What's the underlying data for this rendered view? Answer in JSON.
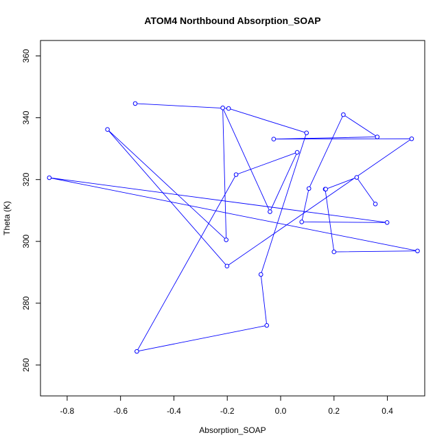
{
  "chart_data": {
    "type": "line",
    "title": "ATOM4 Northbound Absorption_SOAP",
    "xlabel": "Absorption_SOAP",
    "ylabel": "Theta (K)",
    "xlim": [
      -0.9,
      0.54
    ],
    "ylim": [
      250,
      365
    ],
    "xticks": [
      -0.8,
      -0.6,
      -0.4,
      -0.2,
      0.0,
      0.2,
      0.4
    ],
    "xtick_labels": [
      "-0.8",
      "-0.6",
      "-0.4",
      "-0.2",
      "0.0",
      "0.2",
      "0.4"
    ],
    "yticks": [
      260,
      280,
      300,
      320,
      340,
      360
    ],
    "ytick_labels": [
      "260",
      "280",
      "300",
      "320",
      "340",
      "360"
    ],
    "grid": false,
    "series": [
      {
        "color": "#0000ff",
        "marker": "open-circle",
        "x": [
          -0.545,
          -0.195,
          0.097,
          -0.074,
          -0.052,
          -0.539,
          -0.167,
          0.062,
          -0.04,
          -0.217,
          -0.204,
          -0.649,
          -0.201,
          0.491,
          -0.026,
          0.362,
          0.235,
          0.106,
          0.079,
          0.399,
          -0.867,
          0.513,
          0.2,
          0.167,
          0.169,
          0.285,
          0.355
        ],
        "y": [
          344.6,
          343.0,
          335.1,
          289.3,
          272.8,
          264.4,
          321.6,
          328.8,
          309.6,
          343.2,
          300.5,
          336.2,
          292.0,
          333.2,
          333.1,
          333.8,
          341.0,
          317.1,
          306.3,
          306.1,
          320.6,
          296.9,
          296.6,
          316.9,
          316.9,
          320.7,
          312.1
        ]
      }
    ]
  }
}
